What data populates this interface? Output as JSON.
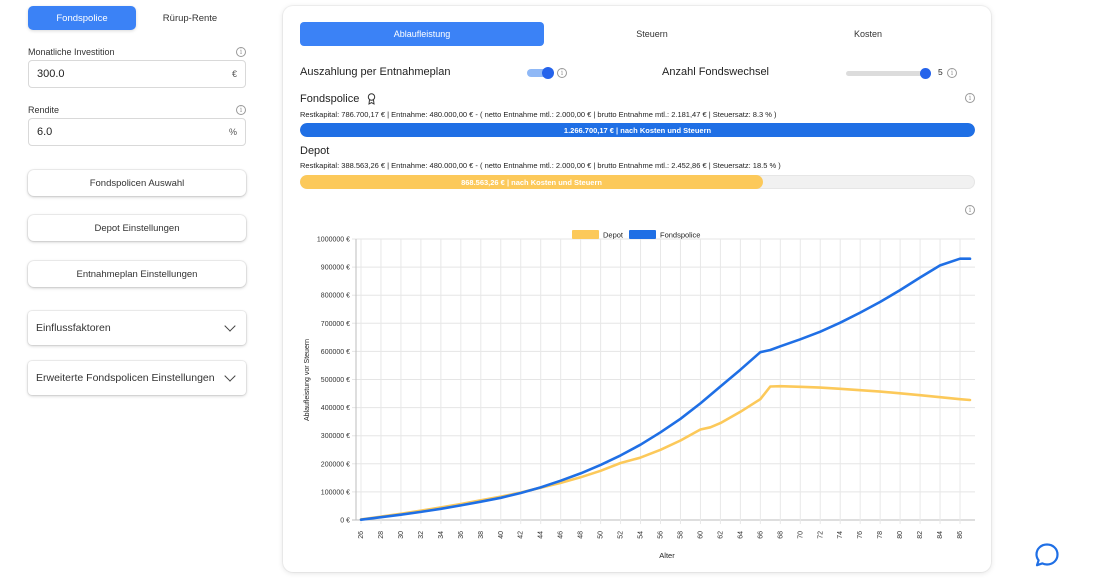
{
  "sidebar": {
    "tabs": [
      {
        "label": "Fondspolice",
        "active": true
      },
      {
        "label": "Rürup-Rente",
        "active": false
      }
    ],
    "investment": {
      "label": "Monatliche Investition",
      "value": "300.0",
      "unit": "€"
    },
    "yield": {
      "label": "Rendite",
      "value": "6.0",
      "unit": "%"
    },
    "buttons": [
      "Fondspolicen Auswahl",
      "Depot Einstellungen",
      "Entnahmeplan Einstellungen"
    ],
    "accordions": [
      "Einflussfaktoren",
      "Erweiterte Fondspolicen Einstellungen"
    ]
  },
  "main": {
    "tabs": [
      {
        "label": "Ablaufleistung",
        "active": true
      },
      {
        "label": "Steuern",
        "active": false
      },
      {
        "label": "Kosten",
        "active": false
      }
    ],
    "options": {
      "payout_label": "Auszahlung per Entnahmeplan",
      "payout_enabled": true,
      "switches_label": "Anzahl Fondswechsel",
      "switches_value": "5"
    },
    "fondspolice": {
      "title": "Fondspolice",
      "details": "Restkapital: 786.700,17 €   |   Entnahme: 480.000,00 €   -   ( netto Entnahme mtl.: 2.000,00 €   |   brutto Entnahme mtl.: 2.181,47 €   |   Steuersatz: 8.3 % )",
      "bar_label": "1.266.700,17 €   |   nach Kosten und Steuern",
      "bar_fraction": 1.0
    },
    "depot": {
      "title": "Depot",
      "details": "Restkapital: 388.563,26 €   |   Entnahme: 480.000,00 €   -   ( netto Entnahme mtl.: 2.000,00 €   |   brutto Entnahme mtl.: 2.452,86 €   |   Steuersatz: 18.5 % )",
      "bar_label": "868.563,26 €   |   nach Kosten und Steuern",
      "bar_fraction": 0.686
    }
  },
  "colors": {
    "blue": "#1f6fe5",
    "yellow": "#fcc95a",
    "accent": "#3b82f6"
  },
  "chart_data": {
    "type": "line",
    "xlabel": "Alter",
    "ylabel": "Ablaufleistung vor Steuern",
    "legend": [
      "Depot",
      "Fondspolice"
    ],
    "legend_position": "top",
    "grid": true,
    "ylim": [
      0,
      1000000
    ],
    "yticks": [
      "0 €",
      "100000 €",
      "200000 €",
      "300000 €",
      "400000 €",
      "500000 €",
      "600000 €",
      "700000 €",
      "800000 €",
      "900000 €",
      "1000000 €"
    ],
    "xticks": [
      26,
      28,
      30,
      32,
      34,
      36,
      38,
      40,
      42,
      44,
      46,
      48,
      50,
      52,
      54,
      56,
      58,
      60,
      62,
      64,
      66,
      68,
      70,
      72,
      74,
      76,
      78,
      80,
      82,
      84,
      86
    ],
    "series": [
      {
        "name": "Depot",
        "color": "#fcc95a",
        "x": [
          26,
          28,
          30,
          32,
          34,
          36,
          38,
          40,
          42,
          44,
          46,
          48,
          50,
          52,
          54,
          56,
          58,
          60,
          61,
          62,
          64,
          66,
          67,
          68,
          70,
          72,
          74,
          76,
          78,
          80,
          82,
          84,
          86,
          87
        ],
        "y": [
          2000,
          12000,
          22000,
          33000,
          45000,
          57000,
          70000,
          83000,
          98000,
          115000,
          132000,
          152000,
          175000,
          203000,
          222000,
          250000,
          283000,
          322000,
          330000,
          345000,
          385000,
          430000,
          475000,
          476000,
          474000,
          471000,
          467000,
          462000,
          457000,
          451000,
          444000,
          437000,
          430000,
          427000
        ]
      },
      {
        "name": "Fondspolice",
        "color": "#1f6fe5",
        "x": [
          26,
          28,
          30,
          32,
          34,
          36,
          38,
          40,
          42,
          44,
          46,
          48,
          50,
          52,
          54,
          56,
          58,
          60,
          62,
          64,
          66,
          67,
          68,
          70,
          72,
          74,
          76,
          78,
          80,
          82,
          84,
          86,
          87
        ],
        "y": [
          1000,
          10000,
          19000,
          29000,
          40000,
          52000,
          65000,
          79000,
          96000,
          116000,
          140000,
          166000,
          196000,
          230000,
          268000,
          312000,
          360000,
          415000,
          475000,
          535000,
          597000,
          605000,
          618000,
          643000,
          670000,
          702000,
          738000,
          776000,
          818000,
          863000,
          906000,
          930000,
          930000
        ]
      }
    ]
  }
}
